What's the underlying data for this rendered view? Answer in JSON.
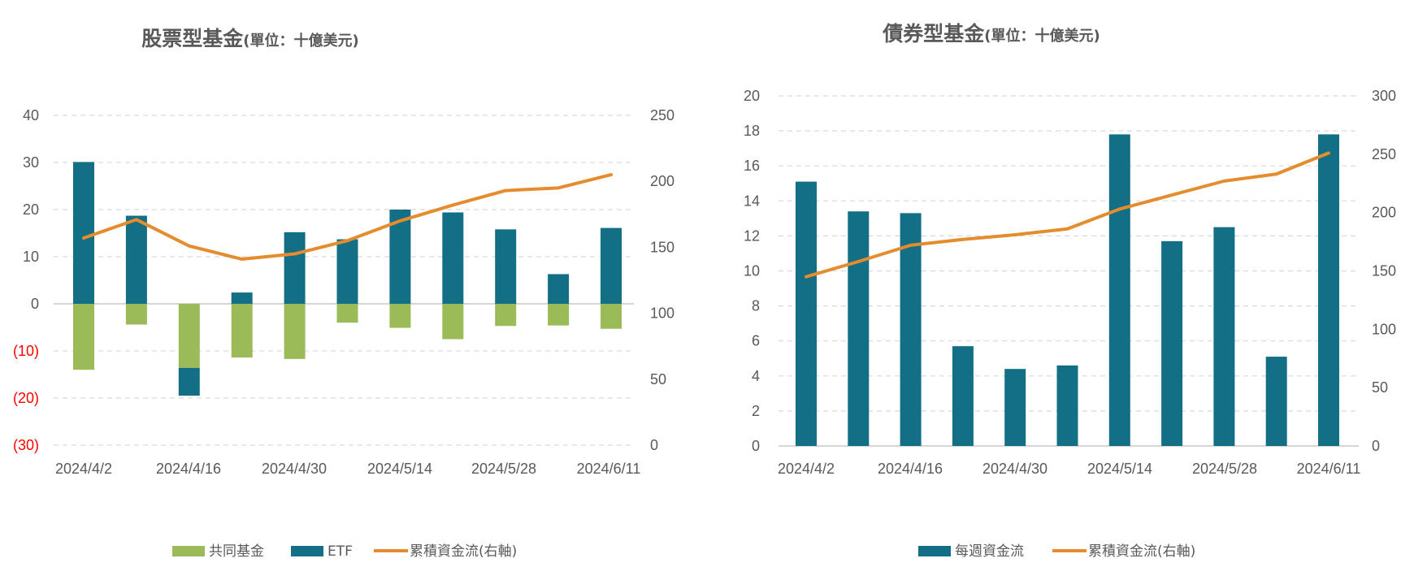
{
  "colors": {
    "mutual_fund": "#9bbb59",
    "etf": "#136f85",
    "weekly_flow": "#136f85",
    "cumulative": "#e48c2e",
    "negative_tick": "#ff0000",
    "grid": "#d9d9d9",
    "text": "#595959"
  },
  "chart_data": [
    {
      "type": "bar",
      "title": "股票型基金",
      "subtitle": "(單位：十億美元)",
      "stacked": true,
      "x_tick_labels": [
        "2024/4/2",
        "2024/4/16",
        "2024/4/30",
        "2024/5/14",
        "2024/5/28",
        "2024/6/11"
      ],
      "weeks": 11,
      "y_left": {
        "ylim": [
          -30,
          40
        ],
        "ticks": [
          40,
          30,
          20,
          10,
          0,
          -10,
          -20,
          -30
        ],
        "tick_labels": [
          "40",
          "30",
          "20",
          "10",
          "0",
          "(10)",
          "(20)",
          "(30)"
        ]
      },
      "y_right": {
        "ylim": [
          0,
          250
        ],
        "ticks": [
          250,
          200,
          150,
          100,
          50,
          0
        ],
        "tick_labels": [
          "250",
          "200",
          "150",
          "100",
          "50",
          "0"
        ]
      },
      "series": [
        {
          "name": "共同基金",
          "kind": "bar",
          "axis": "left",
          "values": [
            -14.0,
            -4.4,
            -13.6,
            -11.4,
            -11.7,
            -4.0,
            -5.1,
            -7.5,
            -4.7,
            -4.6,
            -5.3
          ]
        },
        {
          "name": "ETF",
          "kind": "bar",
          "axis": "left",
          "values": [
            30.1,
            18.7,
            -5.9,
            2.4,
            15.2,
            13.7,
            20.0,
            19.4,
            15.8,
            6.3,
            16.1
          ]
        },
        {
          "name": "累積資金流(右軸)",
          "kind": "line",
          "axis": "right",
          "values": [
            157,
            171,
            151,
            141,
            145,
            155,
            170,
            182,
            193,
            195,
            205
          ]
        }
      ],
      "grid": true,
      "legend_position": "bottom"
    },
    {
      "type": "bar",
      "title": "債券型基金",
      "subtitle": "(單位：十億美元)",
      "stacked": false,
      "x_tick_labels": [
        "2024/4/2",
        "2024/4/16",
        "2024/4/30",
        "2024/5/14",
        "2024/5/28",
        "2024/6/11"
      ],
      "weeks": 11,
      "y_left": {
        "ylim": [
          0,
          20
        ],
        "ticks": [
          20,
          18,
          16,
          14,
          12,
          10,
          8,
          6,
          4,
          2,
          0
        ],
        "tick_labels": [
          "20",
          "18",
          "16",
          "14",
          "12",
          "10",
          "8",
          "6",
          "4",
          "2",
          "0"
        ]
      },
      "y_right": {
        "ylim": [
          0,
          300
        ],
        "ticks": [
          300,
          250,
          200,
          150,
          100,
          50,
          0
        ],
        "tick_labels": [
          "300",
          "250",
          "200",
          "150",
          "100",
          "50",
          "0"
        ]
      },
      "series": [
        {
          "name": "每週資金流",
          "kind": "bar",
          "axis": "left",
          "values": [
            15.1,
            13.4,
            13.3,
            5.7,
            4.4,
            4.6,
            17.8,
            11.7,
            12.5,
            5.1,
            17.8
          ]
        },
        {
          "name": "累積資金流(右軸)",
          "kind": "line",
          "axis": "right",
          "values": [
            145,
            158,
            172,
            177,
            181,
            186,
            203,
            215,
            227,
            233,
            251
          ]
        }
      ],
      "grid": true,
      "legend_position": "bottom"
    }
  ]
}
